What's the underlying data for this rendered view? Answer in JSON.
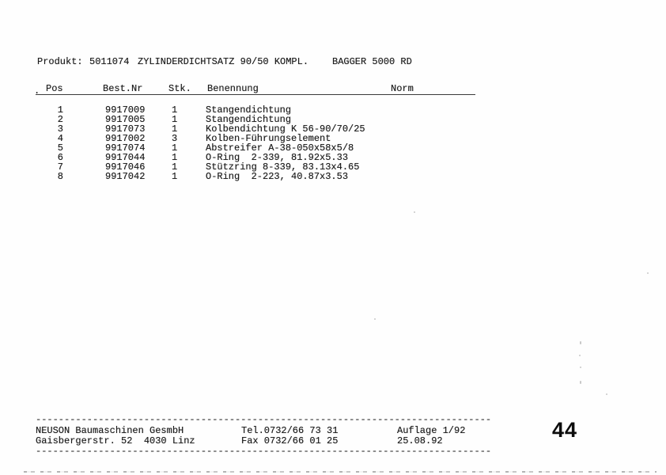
{
  "doc": {
    "product_line": {
      "label": "Produkt:",
      "number": "5011074",
      "description": "ZYLINDERDICHTSATZ 90/50 KOMPL.",
      "machine": "BAGGER 5000 RD"
    },
    "table": {
      "left_mark": ".",
      "headers": {
        "pos": "Pos",
        "best_nr": "Best.Nr",
        "stk": "Stk.",
        "benennung": "Benennung",
        "norm": "Norm"
      },
      "rows": [
        {
          "pos": "1",
          "best_nr": "9917009",
          "stk": "1",
          "benennung": "Stangendichtung",
          "norm": ""
        },
        {
          "pos": "2",
          "best_nr": "9917005",
          "stk": "1",
          "benennung": "Stangendichtung",
          "norm": ""
        },
        {
          "pos": "3",
          "best_nr": "9917073",
          "stk": "1",
          "benennung": "Kolbendichtung K 56-90/70/25",
          "norm": ""
        },
        {
          "pos": "4",
          "best_nr": "9917002",
          "stk": "3",
          "benennung": "Kolben-Führungselement",
          "norm": ""
        },
        {
          "pos": "5",
          "best_nr": "9917074",
          "stk": "1",
          "benennung": "Abstreifer A-38-050x58x5/8",
          "norm": ""
        },
        {
          "pos": "6",
          "best_nr": "9917044",
          "stk": "1",
          "benennung": "O-Ring  2-339, 81.92x5.33",
          "norm": ""
        },
        {
          "pos": "7",
          "best_nr": "9917046",
          "stk": "1",
          "benennung": "Stützring 8-339, 83.13x4.65",
          "norm": ""
        },
        {
          "pos": "8",
          "best_nr": "9917042",
          "stk": "1",
          "benennung": "O-Ring  2-223, 40.87x3.53",
          "norm": ""
        }
      ]
    },
    "footer": {
      "divider": "--------------------------------------------------------------------------------",
      "company_name": "NEUSON Baumaschinen GesmbH",
      "company_address": "Gaisbergerstr. 52  4030 Linz",
      "tel": "Tel.0732/66 73 31",
      "fax": "Fax 0732/66 01 25",
      "edition": "Auflage 1/92",
      "date": "25.08.92",
      "page_number": "44"
    }
  }
}
